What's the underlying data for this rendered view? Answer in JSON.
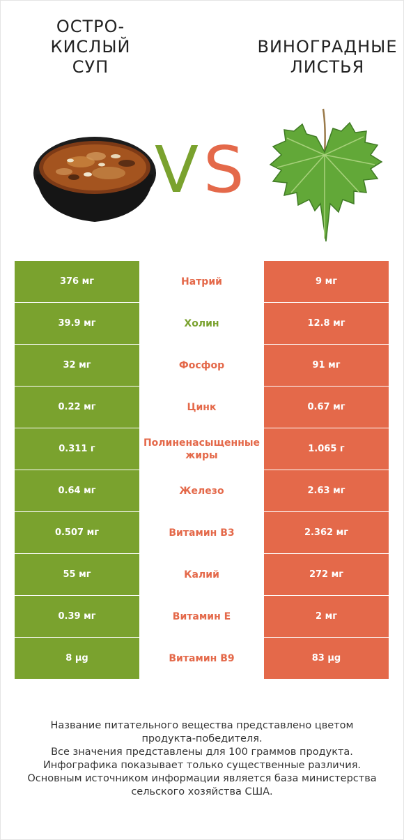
{
  "header": {
    "left_title": "ОСТРО-\nКИСЛЫЙ\nСУП",
    "right_title": "ВИНОГРАДНЫЕ\nЛИСТЬЯ",
    "vs_v": "V",
    "vs_s": "S"
  },
  "colors": {
    "left": "#7aa22e",
    "right": "#e4694a"
  },
  "chart_data": {
    "type": "table",
    "columns": [
      "ОСТРО-КИСЛЫЙ СУП",
      "",
      "ВИНОГРАДНЫЕ ЛИСТЬЯ"
    ],
    "rows": [
      {
        "left": "376 мг",
        "label": "Натрий",
        "right": "9 мг",
        "winner": "right"
      },
      {
        "left": "39.9 мг",
        "label": "Холин",
        "right": "12.8 мг",
        "winner": "left"
      },
      {
        "left": "32 мг",
        "label": "Фосфор",
        "right": "91 мг",
        "winner": "right"
      },
      {
        "left": "0.22 мг",
        "label": "Цинк",
        "right": "0.67 мг",
        "winner": "right"
      },
      {
        "left": "0.311 г",
        "label": "Полиненасыщенные жиры",
        "right": "1.065 г",
        "winner": "right"
      },
      {
        "left": "0.64 мг",
        "label": "Железо",
        "right": "2.63 мг",
        "winner": "right"
      },
      {
        "left": "0.507 мг",
        "label": "Витамин B3",
        "right": "2.362 мг",
        "winner": "right"
      },
      {
        "left": "55 мг",
        "label": "Калий",
        "right": "272 мг",
        "winner": "right"
      },
      {
        "left": "0.39 мг",
        "label": "Витамин E",
        "right": "2 мг",
        "winner": "right"
      },
      {
        "left": "8 µg",
        "label": "Витамин B9",
        "right": "83 µg",
        "winner": "right"
      }
    ]
  },
  "footnote": "Название питательного вещества представлено цветом\nпродукта-победителя.\nВсе значения представлены для 100 граммов продукта.\nИнфографика показывает только существенные различия.\nОсновным источником информации является база министерства\nсельского хозяйства США."
}
